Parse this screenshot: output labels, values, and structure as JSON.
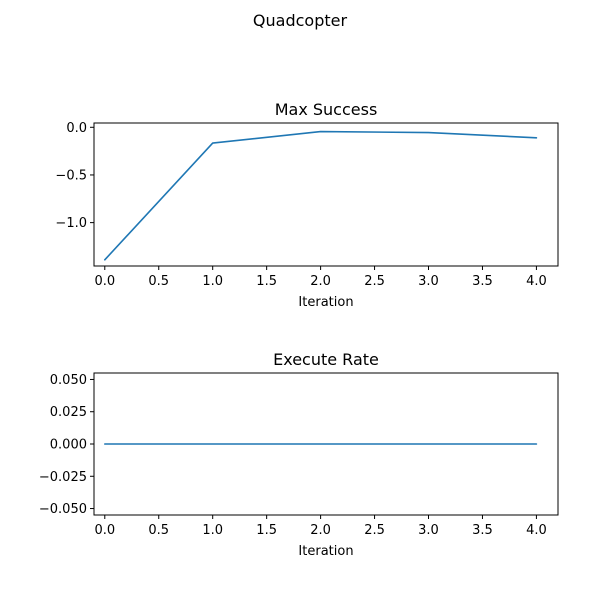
{
  "figure": {
    "suptitle": "Quadcopter"
  },
  "chart_data": [
    {
      "type": "line",
      "title": "Max Success",
      "xlabel": "Iteration",
      "ylabel": "",
      "x": [
        0,
        1,
        2,
        3,
        4
      ],
      "series": [
        {
          "values": [
            -1.39,
            -0.165,
            -0.045,
            -0.055,
            -0.11
          ],
          "color": "#1f77b4"
        }
      ],
      "xlim": [
        -0.1,
        4.2
      ],
      "ylim": [
        -1.455,
        0.045
      ],
      "xticks": [
        0,
        0.5,
        1,
        1.5,
        2,
        2.5,
        3,
        3.5,
        4
      ],
      "xtick_labels": [
        "0.0",
        "0.5",
        "1.0",
        "1.5",
        "2.0",
        "2.5",
        "3.0",
        "3.5",
        "4.0"
      ],
      "yticks": [
        0,
        -0.5,
        -1
      ],
      "ytick_labels": [
        "0.0",
        "−0.5",
        "−1.0"
      ],
      "grid": false
    },
    {
      "type": "line",
      "title": "Execute Rate",
      "xlabel": "Iteration",
      "ylabel": "",
      "x": [
        0,
        1,
        2,
        3,
        4
      ],
      "series": [
        {
          "values": [
            0,
            0,
            0,
            0,
            0
          ],
          "color": "#1f77b4"
        }
      ],
      "xlim": [
        -0.1,
        4.2
      ],
      "ylim": [
        -0.055,
        0.055
      ],
      "xticks": [
        0,
        0.5,
        1,
        1.5,
        2,
        2.5,
        3,
        3.5,
        4
      ],
      "xtick_labels": [
        "0.0",
        "0.5",
        "1.0",
        "1.5",
        "2.0",
        "2.5",
        "3.0",
        "3.5",
        "4.0"
      ],
      "yticks": [
        0.05,
        0.025,
        0,
        -0.025,
        -0.05
      ],
      "ytick_labels": [
        "0.050",
        "0.025",
        "0.000",
        "−0.025",
        "−0.050"
      ],
      "grid": false
    }
  ]
}
